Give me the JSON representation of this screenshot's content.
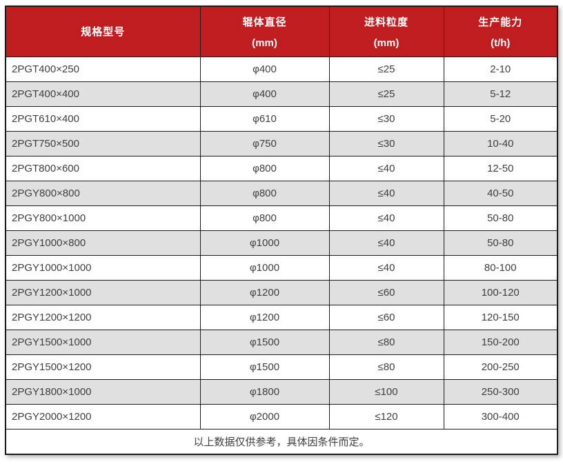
{
  "chart_data": {
    "type": "table",
    "columns": [
      {
        "label": "规格型号",
        "unit": ""
      },
      {
        "label": "辊体直径",
        "unit": "(mm)"
      },
      {
        "label": "进料粒度",
        "unit": "(mm)"
      },
      {
        "label": "生产能力",
        "unit": "(t/h)"
      }
    ],
    "rows": [
      [
        "2PGT400×250",
        "φ400",
        "≤25",
        "2-10"
      ],
      [
        "2PGT400×400",
        "φ400",
        "≤25",
        "5-12"
      ],
      [
        "2PGT610×400",
        "φ610",
        "≤30",
        "5-20"
      ],
      [
        "2PGT750×500",
        "φ750",
        "≤30",
        "10-40"
      ],
      [
        "2PGT800×600",
        "φ800",
        "≤40",
        "12-50"
      ],
      [
        "2PGY800×800",
        "φ800",
        "≤40",
        "40-50"
      ],
      [
        "2PGY800×1000",
        "φ800",
        "≤40",
        "50-80"
      ],
      [
        "2PGY1000×800",
        "φ1000",
        "≤40",
        "50-80"
      ],
      [
        "2PGY1000×1000",
        "φ1000",
        "≤40",
        "80-100"
      ],
      [
        "2PGY1200×1000",
        "φ1200",
        "≤60",
        "100-120"
      ],
      [
        "2PGY1200×1200",
        "φ1200",
        "≤60",
        "120-150"
      ],
      [
        "2PGY1500×1000",
        "φ1500",
        "≤80",
        "150-200"
      ],
      [
        "2PGY1500×1200",
        "φ1500",
        "≤80",
        "200-250"
      ],
      [
        "2PGY1800×1000",
        "φ1800",
        "≤100",
        "250-300"
      ],
      [
        "2PGY2000×1200",
        "φ2000",
        "≤120",
        "300-400"
      ]
    ],
    "footer_note": "以上数据仅供参考，具体因条件而定。"
  },
  "colors": {
    "header_bg": "#bf1d20",
    "header_text": "#ffffff",
    "row_alt_bg": "#e0e0e0",
    "border": "#1b1b1b",
    "body_text": "#3e3e3e"
  }
}
